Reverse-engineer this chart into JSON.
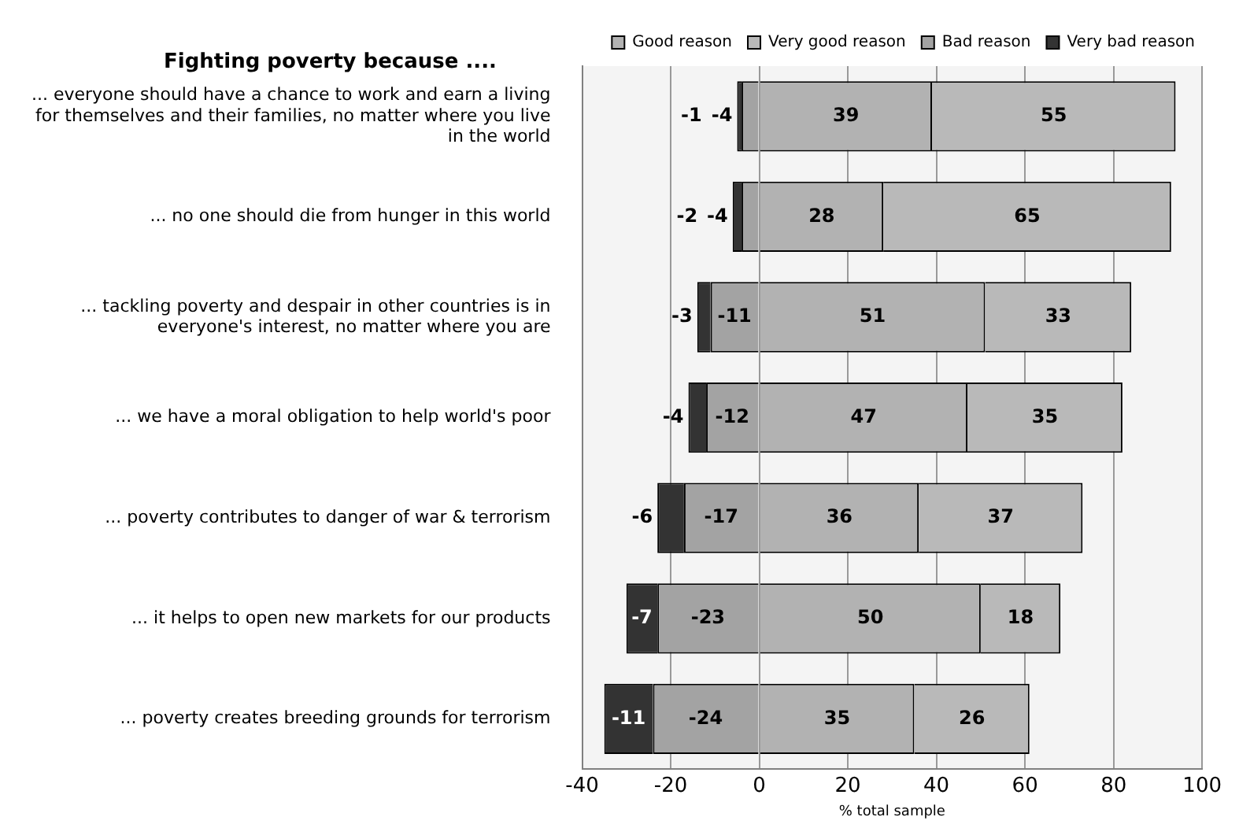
{
  "chart_data": {
    "type": "bar",
    "orientation": "horizontal",
    "stacked": true,
    "title": "Fighting poverty because ....",
    "xlabel": "% total sample",
    "categories": [
      "... everyone should have a chance to work and earn a living for themselves and their families, no matter where you live in the world",
      "... no one should die from hunger in this world",
      "... tackling poverty and despair in other countries is in everyone's interest, no matter where you are",
      "... we have a moral obligation to help world's poor",
      "... poverty contributes to danger of war & terrorism",
      "... it helps to open new markets for our products",
      "... poverty creates breeding grounds for terrorism"
    ],
    "series": [
      {
        "name": "Good reason",
        "color": "#b2b2b2",
        "values": [
          39,
          28,
          51,
          47,
          36,
          50,
          35
        ]
      },
      {
        "name": "Very good reason",
        "color": "#b9b9b9",
        "values": [
          55,
          65,
          33,
          35,
          37,
          18,
          26
        ]
      },
      {
        "name": "Bad reason",
        "color": "#a3a3a3",
        "values": [
          -4,
          -4,
          -11,
          -12,
          -17,
          -23,
          -24
        ]
      },
      {
        "name": "Very bad reason",
        "color": "#333333",
        "values": [
          -1,
          -2,
          -3,
          -4,
          -6,
          -7,
          -11
        ]
      }
    ],
    "xlim": [
      -40,
      100
    ],
    "xticks": [
      -40,
      -20,
      0,
      20,
      40,
      60,
      80,
      100
    ],
    "grid": "x",
    "legend": "top right",
    "data_labels": true
  }
}
